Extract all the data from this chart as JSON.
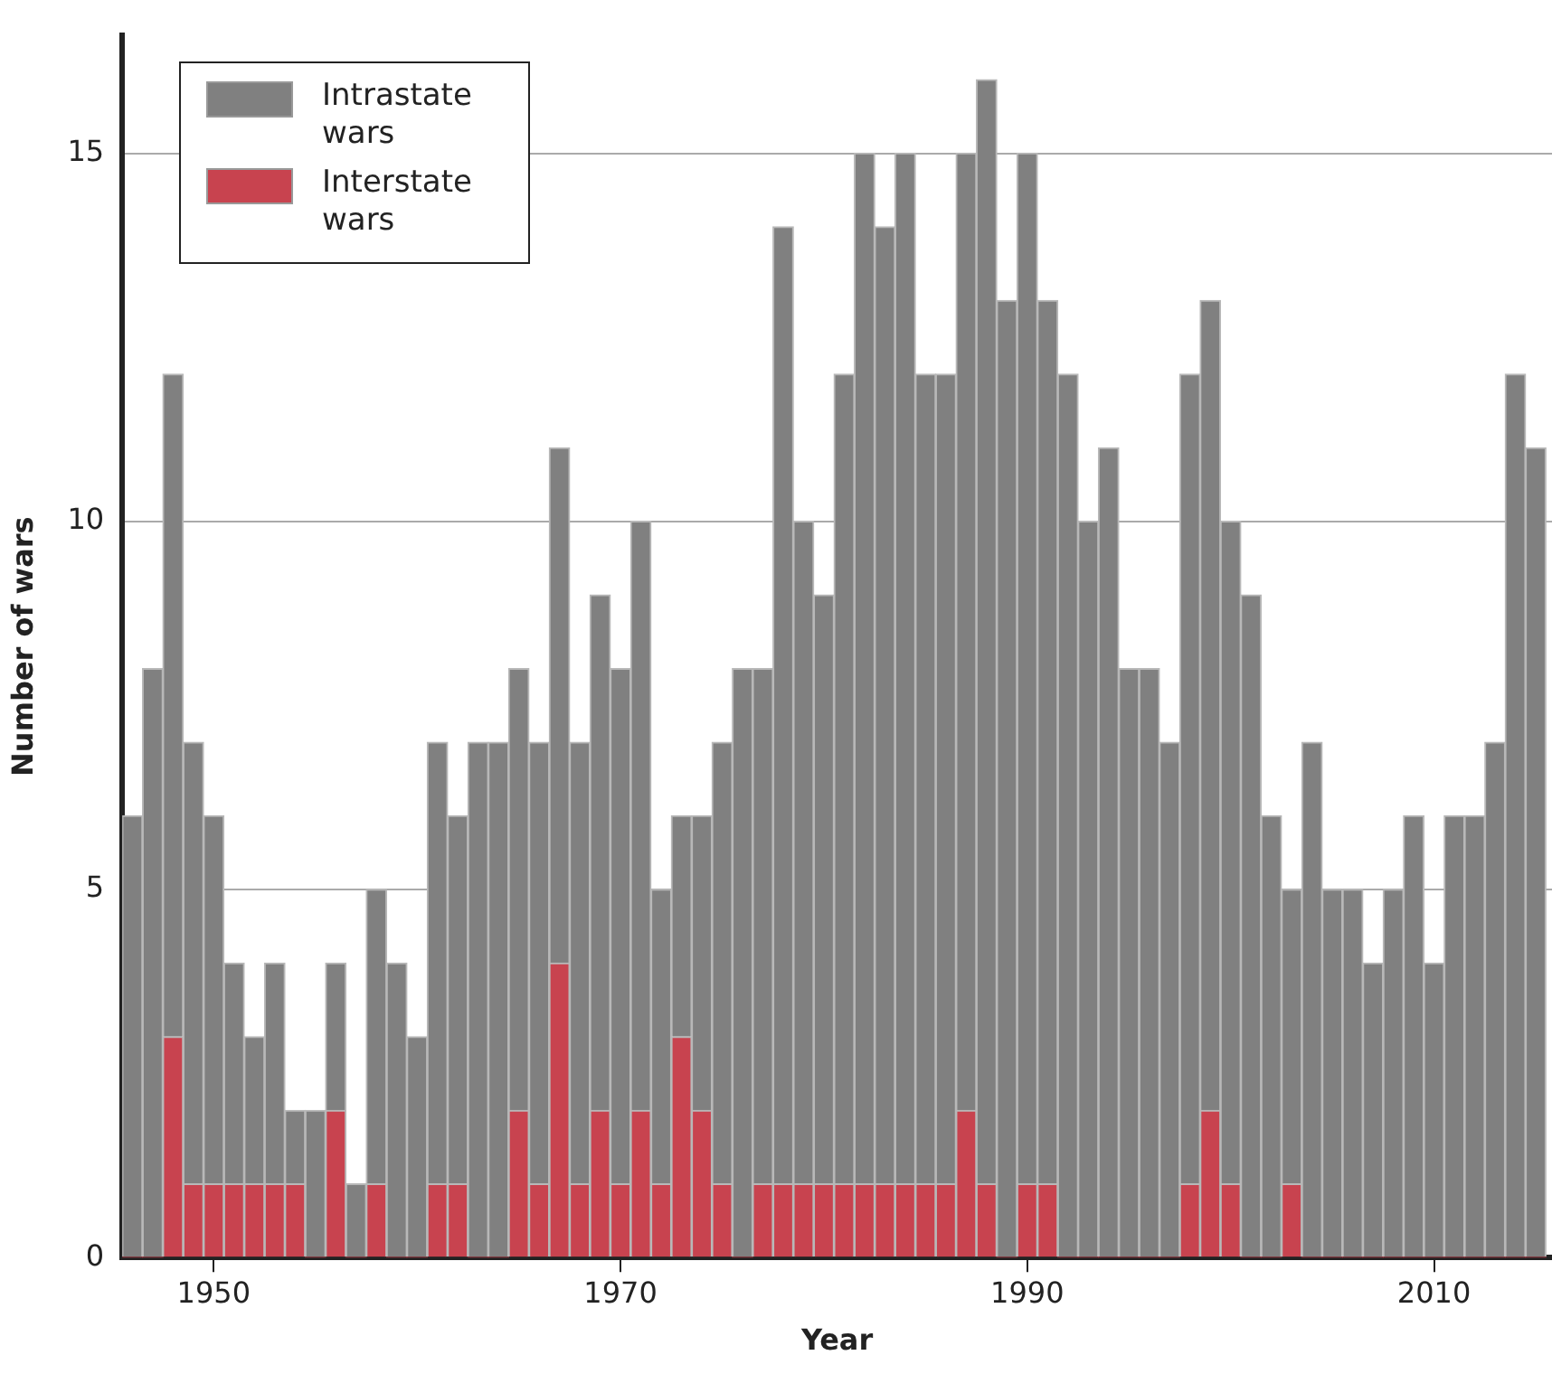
{
  "chart_data": {
    "type": "bar",
    "xlabel": "Year",
    "ylabel": "Number of wars",
    "stacked": true,
    "x": [
      1946,
      1947,
      1948,
      1949,
      1950,
      1951,
      1952,
      1953,
      1954,
      1955,
      1956,
      1957,
      1958,
      1959,
      1960,
      1961,
      1962,
      1963,
      1964,
      1965,
      1966,
      1967,
      1968,
      1969,
      1970,
      1971,
      1972,
      1973,
      1974,
      1975,
      1976,
      1977,
      1978,
      1979,
      1980,
      1981,
      1982,
      1983,
      1984,
      1985,
      1986,
      1987,
      1988,
      1989,
      1990,
      1991,
      1992,
      1993,
      1994,
      1995,
      1996,
      1997,
      1998,
      1999,
      2000,
      2001,
      2002,
      2003,
      2004,
      2005,
      2006,
      2007,
      2008,
      2009,
      2010,
      2011,
      2012,
      2013,
      2014,
      2015
    ],
    "series": [
      {
        "name": "Interstate wars",
        "color": "#c8434f",
        "values": [
          0,
          0,
          3,
          1,
          1,
          1,
          1,
          1,
          1,
          0,
          2,
          0,
          1,
          0,
          0,
          1,
          1,
          0,
          0,
          2,
          1,
          4,
          1,
          2,
          1,
          2,
          1,
          3,
          2,
          1,
          0,
          1,
          1,
          1,
          1,
          1,
          1,
          1,
          1,
          1,
          1,
          2,
          1,
          0,
          1,
          1,
          0,
          0,
          0,
          0,
          0,
          0,
          1,
          2,
          1,
          0,
          0,
          1,
          0,
          0,
          0,
          0,
          0,
          0,
          0,
          0,
          0,
          0,
          0,
          0
        ]
      },
      {
        "name": "Intrastate wars",
        "color": "#808080",
        "values": [
          6,
          8,
          9,
          6,
          5,
          3,
          2,
          3,
          1,
          2,
          2,
          1,
          4,
          4,
          3,
          6,
          5,
          7,
          7,
          6,
          6,
          7,
          6,
          7,
          7,
          8,
          4,
          3,
          4,
          6,
          8,
          7,
          13,
          9,
          8,
          11,
          14,
          13,
          14,
          11,
          11,
          13,
          15,
          13,
          14,
          12,
          12,
          10,
          11,
          8,
          8,
          7,
          11,
          11,
          9,
          9,
          6,
          4,
          7,
          5,
          5,
          4,
          5,
          6,
          4,
          6,
          6,
          7,
          12,
          11
        ]
      }
    ],
    "xlim": [
      1945.5,
      2015.8
    ],
    "xticks": [
      1950,
      1970,
      1990,
      2010
    ],
    "ylim": [
      0,
      16.6
    ],
    "yticks": [
      0,
      5,
      10,
      15
    ],
    "grid": "y",
    "legend": "top left"
  }
}
